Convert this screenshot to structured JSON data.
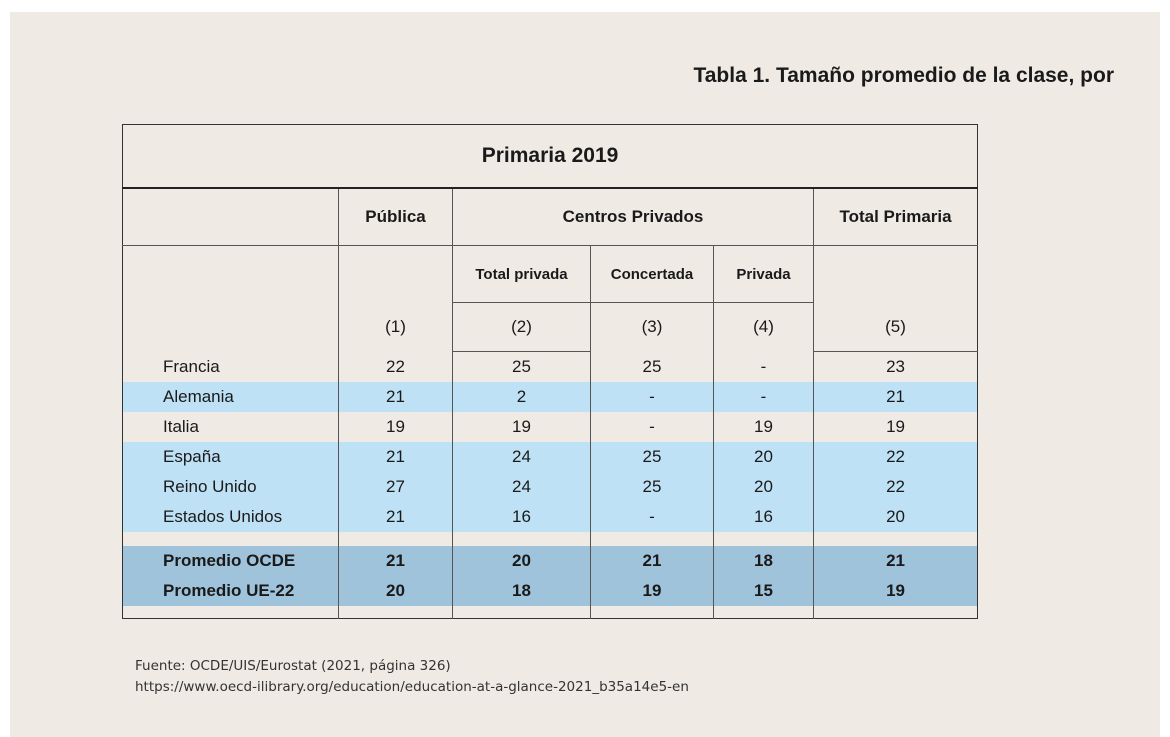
{
  "doc_title": "Tabla 1. Tamaño promedio de la clase, por",
  "table": {
    "caption": "Primaria 2019",
    "headers": {
      "publica": "Pública",
      "centros_privados": "Centros Privados",
      "total_primaria": "Total Primaria",
      "total_privada": "Total privada",
      "concertada": "Concertada",
      "privada": "Privada",
      "col_nums": [
        "(1)",
        "(2)",
        "(3)",
        "(4)",
        "(5)"
      ]
    },
    "rows": [
      {
        "country": "Francia",
        "c1": "22",
        "c2": "25",
        "c3": "25",
        "c4": "-",
        "c5": "23"
      },
      {
        "country": "Alemania",
        "c1": "21",
        "c2": "2",
        "c3": "-",
        "c4": "-",
        "c5": "21"
      },
      {
        "country": "Italia",
        "c1": "19",
        "c2": "19",
        "c3": "-",
        "c4": "19",
        "c5": "19"
      },
      {
        "country": "España",
        "c1": "21",
        "c2": "24",
        "c3": "25",
        "c4": "20",
        "c5": "22"
      },
      {
        "country": "Reino Unido",
        "c1": "27",
        "c2": "24",
        "c3": "25",
        "c4": "20",
        "c5": "22"
      },
      {
        "country": "Estados Unidos",
        "c1": "21",
        "c2": "16",
        "c3": "-",
        "c4": "16",
        "c5": "20"
      }
    ],
    "averages": [
      {
        "country": "Promedio OCDE",
        "c1": "21",
        "c2": "20",
        "c3": "21",
        "c4": "18",
        "c5": "21"
      },
      {
        "country": "Promedio UE-22",
        "c1": "20",
        "c2": "18",
        "c3": "19",
        "c4": "15",
        "c5": "19"
      }
    ]
  },
  "source": {
    "line1": "Fuente: OCDE/UIS/Eurostat (2021, página 326)",
    "line2": "https://www.oecd-ilibrary.org/education/education-at-a-glance-2021_b35a14e5-en"
  }
}
